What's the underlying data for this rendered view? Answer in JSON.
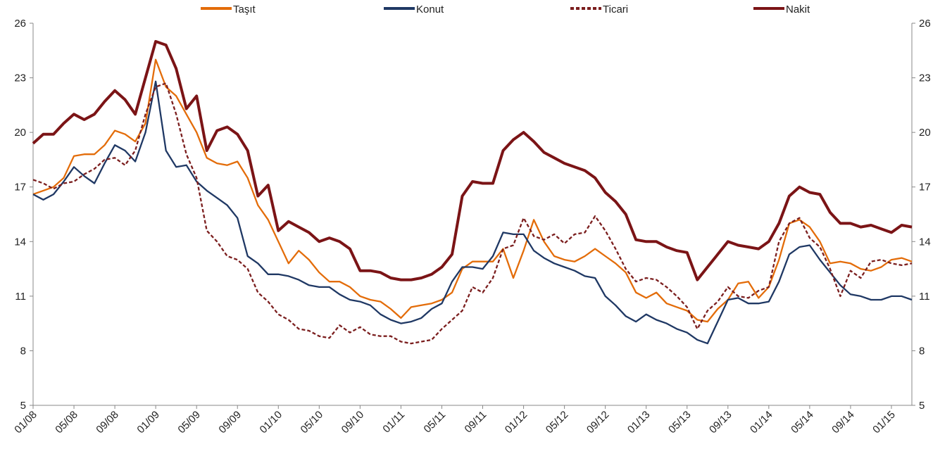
{
  "chart_data": {
    "type": "line",
    "categories": [
      "01/08",
      null,
      null,
      null,
      "05/08",
      null,
      null,
      null,
      "09/08",
      null,
      null,
      null,
      "01/09",
      null,
      null,
      null,
      "05/09",
      null,
      null,
      null,
      "09/09",
      null,
      null,
      null,
      "01/10",
      null,
      null,
      null,
      "05/10",
      null,
      null,
      null,
      "09/10",
      null,
      null,
      null,
      "01/11",
      null,
      null,
      null,
      "05/11",
      null,
      null,
      null,
      "09/11",
      null,
      null,
      null,
      "01/12",
      null,
      null,
      null,
      "05/12",
      null,
      null,
      null,
      "09/12",
      null,
      null,
      null,
      "01/13",
      null,
      null,
      null,
      "05/13",
      null,
      null,
      null,
      "09/13",
      null,
      null,
      null,
      "01/14",
      null,
      null,
      null,
      "05/14",
      null,
      null,
      null,
      "09/14",
      null,
      null,
      null,
      "01/15",
      null,
      null
    ],
    "series": [
      {
        "name": "Taşıt",
        "color": "#e36c09",
        "line_style": "solid",
        "values": [
          16.6,
          16.8,
          17.0,
          17.5,
          18.7,
          18.8,
          18.8,
          19.3,
          20.1,
          19.9,
          19.5,
          20.5,
          24.0,
          22.5,
          22.0,
          21.0,
          20.0,
          18.6,
          18.3,
          18.2,
          18.4,
          17.5,
          16.0,
          15.2,
          14.0,
          12.8,
          13.5,
          13.0,
          12.3,
          11.8,
          11.8,
          11.5,
          11.0,
          10.8,
          10.7,
          10.3,
          9.8,
          10.4,
          10.5,
          10.6,
          10.8,
          11.2,
          12.5,
          12.9,
          12.9,
          12.9,
          13.6,
          12.0,
          13.5,
          15.2,
          14.0,
          13.2,
          13.0,
          12.9,
          13.2,
          13.6,
          13.2,
          12.8,
          12.3,
          11.2,
          10.9,
          11.2,
          10.6,
          10.4,
          10.2,
          9.7,
          9.6,
          10.3,
          10.8,
          11.7,
          11.8,
          10.9,
          11.5,
          13.0,
          15.0,
          15.2,
          14.8,
          14.0,
          12.8,
          12.9,
          12.8,
          12.5,
          12.4,
          12.6,
          13.0,
          13.1,
          12.9
        ]
      },
      {
        "name": "Konut",
        "color": "#1f3864",
        "line_style": "solid",
        "values": [
          16.6,
          16.3,
          16.6,
          17.3,
          18.1,
          17.6,
          17.2,
          18.3,
          19.3,
          19.0,
          18.4,
          20.0,
          22.8,
          19.0,
          18.1,
          18.2,
          17.3,
          16.8,
          16.4,
          16.0,
          15.3,
          13.2,
          12.8,
          12.2,
          12.2,
          12.1,
          11.9,
          11.6,
          11.5,
          11.5,
          11.1,
          10.8,
          10.7,
          10.5,
          10.0,
          9.7,
          9.5,
          9.6,
          9.8,
          10.3,
          10.6,
          11.8,
          12.6,
          12.6,
          12.5,
          13.2,
          14.5,
          14.4,
          14.4,
          13.5,
          13.1,
          12.8,
          12.6,
          12.4,
          12.1,
          12.0,
          11.0,
          10.5,
          9.9,
          9.6,
          10.0,
          9.7,
          9.5,
          9.2,
          9.0,
          8.6,
          8.4,
          9.6,
          10.8,
          10.9,
          10.6,
          10.6,
          10.7,
          11.8,
          13.3,
          13.7,
          13.8,
          13.0,
          12.3,
          11.6,
          11.1,
          11.0,
          10.8,
          10.8,
          11.0,
          11.0,
          10.8
        ]
      },
      {
        "name": "Ticari",
        "color": "#7b1e1e",
        "line_style": "dashed",
        "values": [
          17.4,
          17.2,
          16.9,
          17.2,
          17.3,
          17.7,
          18.0,
          18.5,
          18.6,
          18.2,
          19.0,
          21.0,
          22.5,
          22.7,
          21.0,
          18.8,
          17.5,
          14.6,
          14.0,
          13.2,
          13.0,
          12.5,
          11.2,
          10.7,
          10.0,
          9.7,
          9.2,
          9.1,
          8.8,
          8.7,
          9.4,
          9.0,
          9.3,
          8.9,
          8.8,
          8.8,
          8.5,
          8.4,
          8.5,
          8.6,
          9.2,
          9.7,
          10.2,
          11.5,
          11.2,
          12.0,
          13.6,
          13.8,
          15.3,
          14.3,
          14.1,
          14.4,
          13.9,
          14.4,
          14.5,
          15.4,
          14.6,
          13.6,
          12.5,
          11.8,
          12.0,
          11.9,
          11.5,
          11.0,
          10.4,
          9.2,
          10.2,
          10.7,
          11.5,
          11.0,
          10.9,
          11.3,
          11.5,
          14.0,
          15.0,
          15.3,
          14.2,
          13.7,
          12.5,
          11.0,
          12.4,
          12.0,
          12.9,
          13.0,
          12.8,
          12.7,
          12.8
        ]
      },
      {
        "name": "Nakit",
        "color": "#7b1416",
        "line_style": "solid",
        "values": [
          19.4,
          19.9,
          19.9,
          20.5,
          21.0,
          20.7,
          21.0,
          21.7,
          22.3,
          21.8,
          21.0,
          23.0,
          25.0,
          24.8,
          23.5,
          21.3,
          22.0,
          19.0,
          20.1,
          20.3,
          19.9,
          19.0,
          16.5,
          17.1,
          14.6,
          15.1,
          14.8,
          14.5,
          14.0,
          14.2,
          14.0,
          13.6,
          12.4,
          12.4,
          12.3,
          12.0,
          11.9,
          11.9,
          12.0,
          12.2,
          12.6,
          13.3,
          16.5,
          17.3,
          17.2,
          17.2,
          19.0,
          19.6,
          20.0,
          19.5,
          18.9,
          18.6,
          18.3,
          18.1,
          17.9,
          17.5,
          16.7,
          16.2,
          15.5,
          14.1,
          14.0,
          14.0,
          13.7,
          13.5,
          13.4,
          11.9,
          12.6,
          13.3,
          14.0,
          13.8,
          13.7,
          13.6,
          14.0,
          15.0,
          16.5,
          17.0,
          16.7,
          16.6,
          15.6,
          15.0,
          15.0,
          14.8,
          14.9,
          14.7,
          14.5,
          14.9,
          14.8
        ]
      }
    ],
    "ylim": [
      5,
      26
    ],
    "yticks": [
      5,
      8,
      11,
      14,
      17,
      20,
      23,
      26
    ],
    "y2lim": [
      5,
      26
    ],
    "y2ticks": [
      5,
      8,
      11,
      14,
      17,
      20,
      23,
      26
    ],
    "grid": false,
    "legend": "top"
  }
}
